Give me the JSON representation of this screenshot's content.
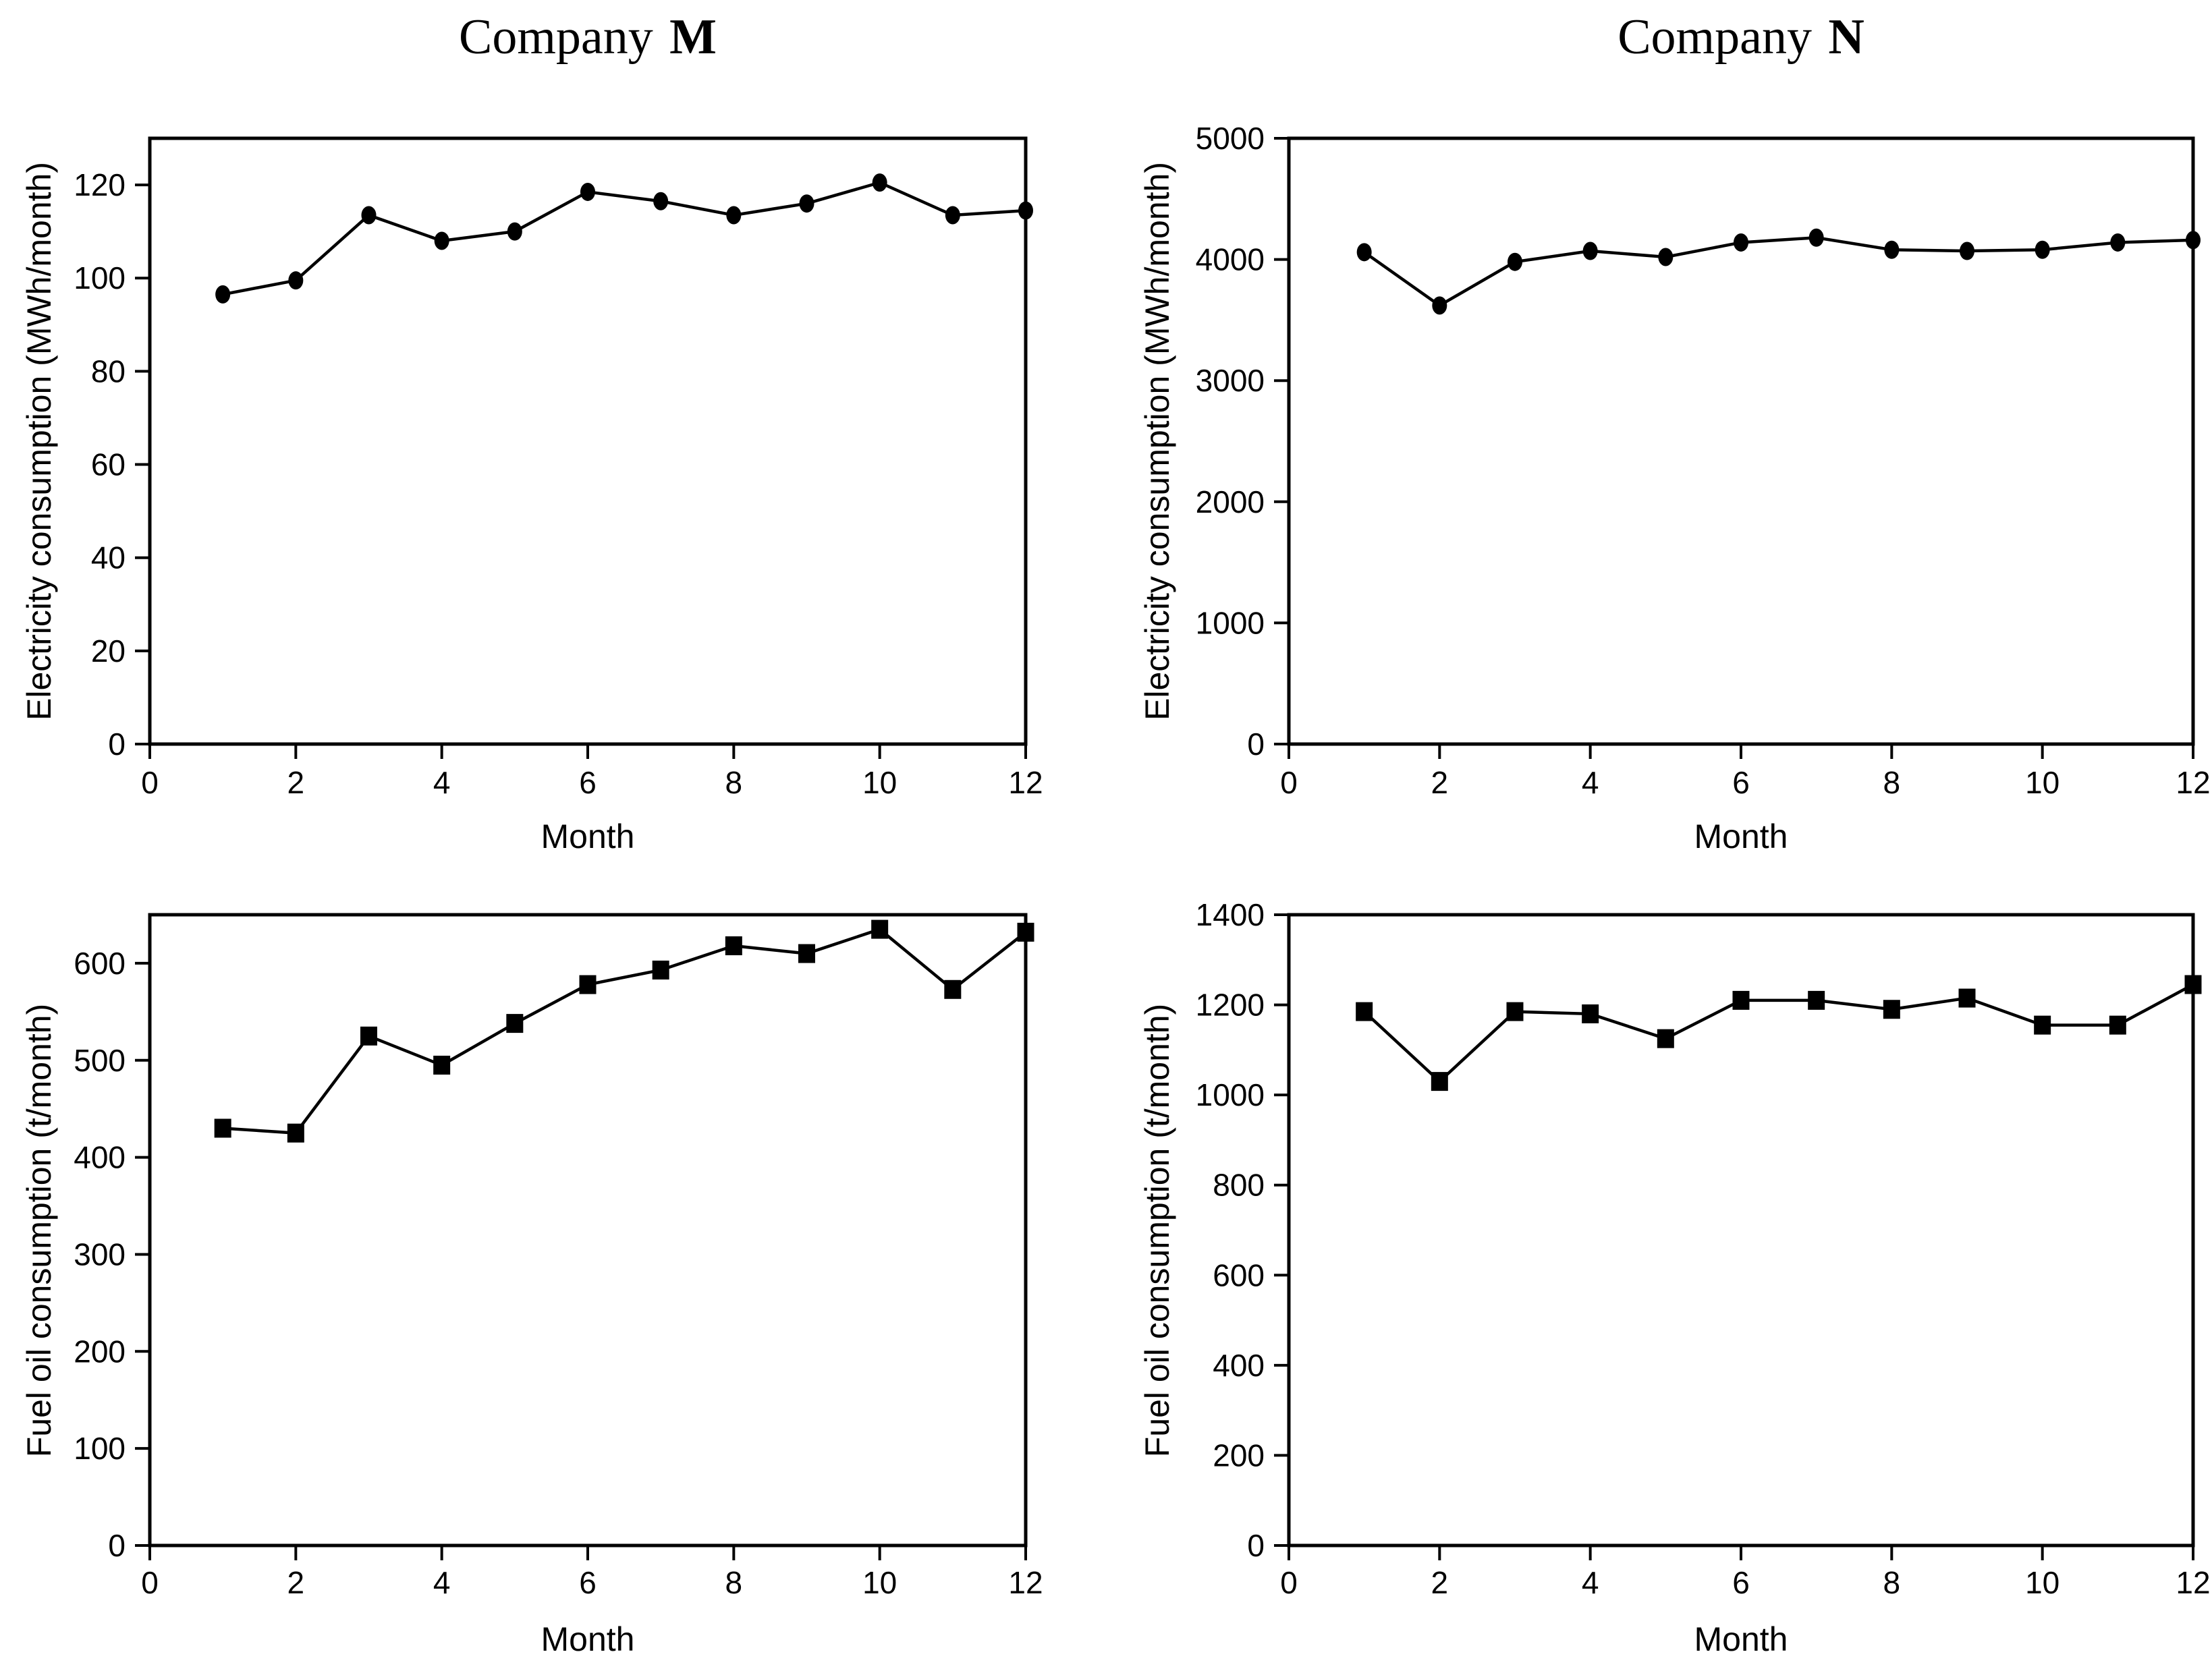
{
  "page": {
    "background": "#ffffff",
    "ink_color": "#000000"
  },
  "chart_data": [
    {
      "id": "company-m-electricity",
      "type": "line",
      "title_regular": "Company",
      "title_bold": "M",
      "xlabel": "Month",
      "ylabel": "Electricity consumption (MWh/month)",
      "x": [
        1,
        2,
        3,
        4,
        5,
        6,
        7,
        8,
        9,
        10,
        11,
        12
      ],
      "values": [
        96.5,
        99.5,
        113.5,
        108,
        110,
        118.5,
        116.5,
        113.5,
        116,
        120.5,
        113.5,
        114.5
      ],
      "xlim": [
        0,
        12
      ],
      "ylim": [
        0,
        130
      ],
      "xticks": [
        0,
        2,
        4,
        6,
        8,
        10,
        12
      ],
      "yticks": [
        0,
        20,
        40,
        60,
        80,
        100,
        120
      ],
      "marker": "circle",
      "line_color": "#000000",
      "grid": false,
      "legend": "none"
    },
    {
      "id": "company-n-electricity",
      "type": "line",
      "title_regular": "Company",
      "title_bold": "N",
      "xlabel": "Month",
      "ylabel": "Electricity consumption (MWh/month)",
      "x": [
        1,
        2,
        3,
        4,
        5,
        6,
        7,
        8,
        9,
        10,
        11,
        12
      ],
      "values": [
        4060,
        3620,
        3980,
        4070,
        4020,
        4140,
        4180,
        4080,
        4070,
        4080,
        4140,
        4160
      ],
      "xlim": [
        0,
        12
      ],
      "ylim": [
        0,
        5000
      ],
      "xticks": [
        0,
        2,
        4,
        6,
        8,
        10,
        12
      ],
      "yticks": [
        0,
        1000,
        2000,
        3000,
        4000,
        5000
      ],
      "marker": "circle",
      "line_color": "#000000",
      "grid": false,
      "legend": "none"
    },
    {
      "id": "company-m-fuel-oil",
      "type": "line",
      "title_regular": "",
      "title_bold": "",
      "xlabel": "Month",
      "ylabel": "Fuel oil consumption (t/month)",
      "x": [
        1,
        2,
        3,
        4,
        5,
        6,
        7,
        8,
        9,
        10,
        11,
        12
      ],
      "values": [
        430,
        425,
        525,
        495,
        538,
        578,
        593,
        618,
        610,
        635,
        573,
        632
      ],
      "xlim": [
        0,
        12
      ],
      "ylim": [
        0,
        650
      ],
      "xticks": [
        0,
        2,
        4,
        6,
        8,
        10,
        12
      ],
      "yticks": [
        0,
        100,
        200,
        300,
        400,
        500,
        600
      ],
      "marker": "square",
      "line_color": "#000000",
      "grid": false,
      "legend": "none"
    },
    {
      "id": "company-n-fuel-oil",
      "type": "line",
      "title_regular": "",
      "title_bold": "",
      "xlabel": "Month",
      "ylabel": "Fuel oil consumption (t/month)",
      "x": [
        1,
        2,
        3,
        4,
        5,
        6,
        7,
        8,
        9,
        10,
        11,
        12
      ],
      "values": [
        1185,
        1030,
        1185,
        1180,
        1125,
        1210,
        1210,
        1190,
        1215,
        1155,
        1155,
        1245
      ],
      "xlim": [
        0,
        12
      ],
      "ylim": [
        0,
        1400
      ],
      "xticks": [
        0,
        2,
        4,
        6,
        8,
        10,
        12
      ],
      "yticks": [
        0,
        200,
        400,
        600,
        800,
        1000,
        1200,
        1400
      ],
      "marker": "square",
      "line_color": "#000000",
      "grid": false,
      "legend": "none"
    }
  ]
}
